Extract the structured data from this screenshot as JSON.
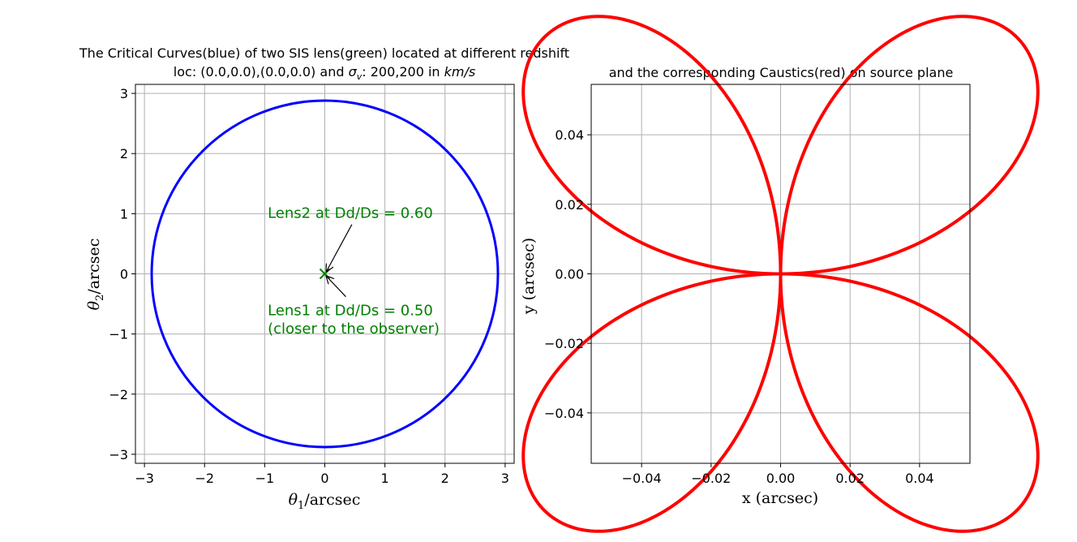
{
  "chart_data": [
    {
      "type": "line",
      "title_line1": "The Critical Curves(blue) of two SIS lens(green) located at different redshift",
      "title_line2_prefix": "loc: (0.0,0.0),(0.0,0.0) and ",
      "title_line2_sigma": "σ",
      "title_line2_sub": "v",
      "title_line2_mid": ": 200,200 in ",
      "title_line2_units": "km/s",
      "xlabel_symbol": "θ",
      "xlabel_sub": "1",
      "xlabel_rest": "/arcsec",
      "ylabel_symbol": "θ",
      "ylabel_sub": "2",
      "ylabel_rest": "/arcsec",
      "xlim": [
        -3.15,
        3.15
      ],
      "ylim": [
        -3.15,
        3.15
      ],
      "xticks": [
        -3,
        -2,
        -1,
        0,
        1,
        2,
        3
      ],
      "xtick_labels": [
        "−3",
        "−2",
        "−1",
        "0",
        "1",
        "2",
        "3"
      ],
      "yticks": [
        -3,
        -2,
        -1,
        0,
        1,
        2,
        3
      ],
      "ytick_labels": [
        "−3",
        "−2",
        "−1",
        "0",
        "1",
        "2",
        "3"
      ],
      "grid": true,
      "series": [
        {
          "kind": "circle",
          "center": [
            0,
            0
          ],
          "radius": 2.88,
          "color": "#0000ff"
        }
      ],
      "markers": [
        {
          "x": 0,
          "y": 0,
          "symbol": "x",
          "color": "#008000"
        }
      ],
      "annotations": [
        {
          "text": "Lens2 at Dd/Ds = 0.60",
          "text_x": -0.95,
          "text_y": 0.93,
          "arrow_from": [
            0.45,
            0.82
          ],
          "arrow_to": [
            0.0,
            0.0
          ],
          "color": "#008000"
        },
        {
          "text": "Lens1 at Dd/Ds = 0.50",
          "text_x": -0.95,
          "text_y": -0.69,
          "arrow_from": [
            0.35,
            -0.38
          ],
          "arrow_to": [
            0.0,
            0.0
          ],
          "color": "#008000"
        },
        {
          "text": " (closer to the observer)",
          "text_x": -0.95,
          "text_y": -0.99,
          "color": "#008000"
        }
      ]
    },
    {
      "type": "line",
      "title": "and the corresponding Caustics(red) on source plane",
      "xlabel": "x (arcsec)",
      "ylabel": "y (arcsec)",
      "xlim": [
        -0.0545,
        0.0545
      ],
      "ylim": [
        -0.0545,
        0.0545
      ],
      "xticks": [
        -0.04,
        -0.02,
        0.0,
        0.02,
        0.04
      ],
      "xtick_labels": [
        "−0.04",
        "−0.02",
        "0.00",
        "0.02",
        "0.04"
      ],
      "yticks": [
        -0.04,
        -0.02,
        0.0,
        0.02,
        0.04
      ],
      "ytick_labels": [
        "−0.04",
        "−0.02",
        "0.00",
        "0.02",
        "0.04"
      ],
      "grid": true,
      "series": [
        {
          "kind": "four-leaf-rose",
          "amplitude": 0.0962,
          "color": "#ff0000"
        }
      ]
    }
  ]
}
